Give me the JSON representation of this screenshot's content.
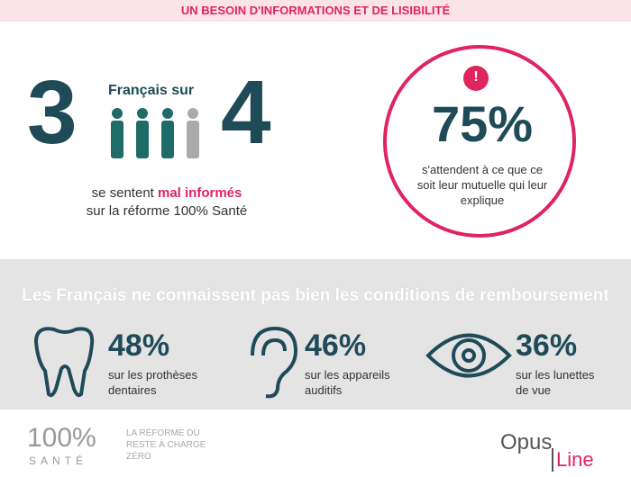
{
  "banner": "UN BESOIN D'INFORMATIONS ET DE LISIBILITÉ",
  "left": {
    "big_left": "3",
    "caption_top": "Français sur",
    "big_right": "4",
    "text_before": "se sentent ",
    "text_highlight": "mal informés",
    "text_after": "sur la réforme 100% Santé"
  },
  "right": {
    "badge": "!",
    "big": "75%",
    "text": "s'attendent à ce que ce soit leur mutuelle qui leur explique"
  },
  "section": {
    "title": "Les Français ne connaissent pas bien les conditions de remboursement",
    "items": [
      {
        "value": "48%",
        "text": "sur les prothèses dentaires"
      },
      {
        "value": "46%",
        "text": "sur les appareils auditifs"
      },
      {
        "value": "36%",
        "text": "sur les lunettes de vue"
      }
    ]
  },
  "footer": {
    "logo": "100%",
    "logo_sub": "SANTÉ",
    "tagline": "LA RÉFORME DU RESTE À CHARGE ZÉRO",
    "brand_top": "Opus",
    "brand_bottom": "Line"
  }
}
